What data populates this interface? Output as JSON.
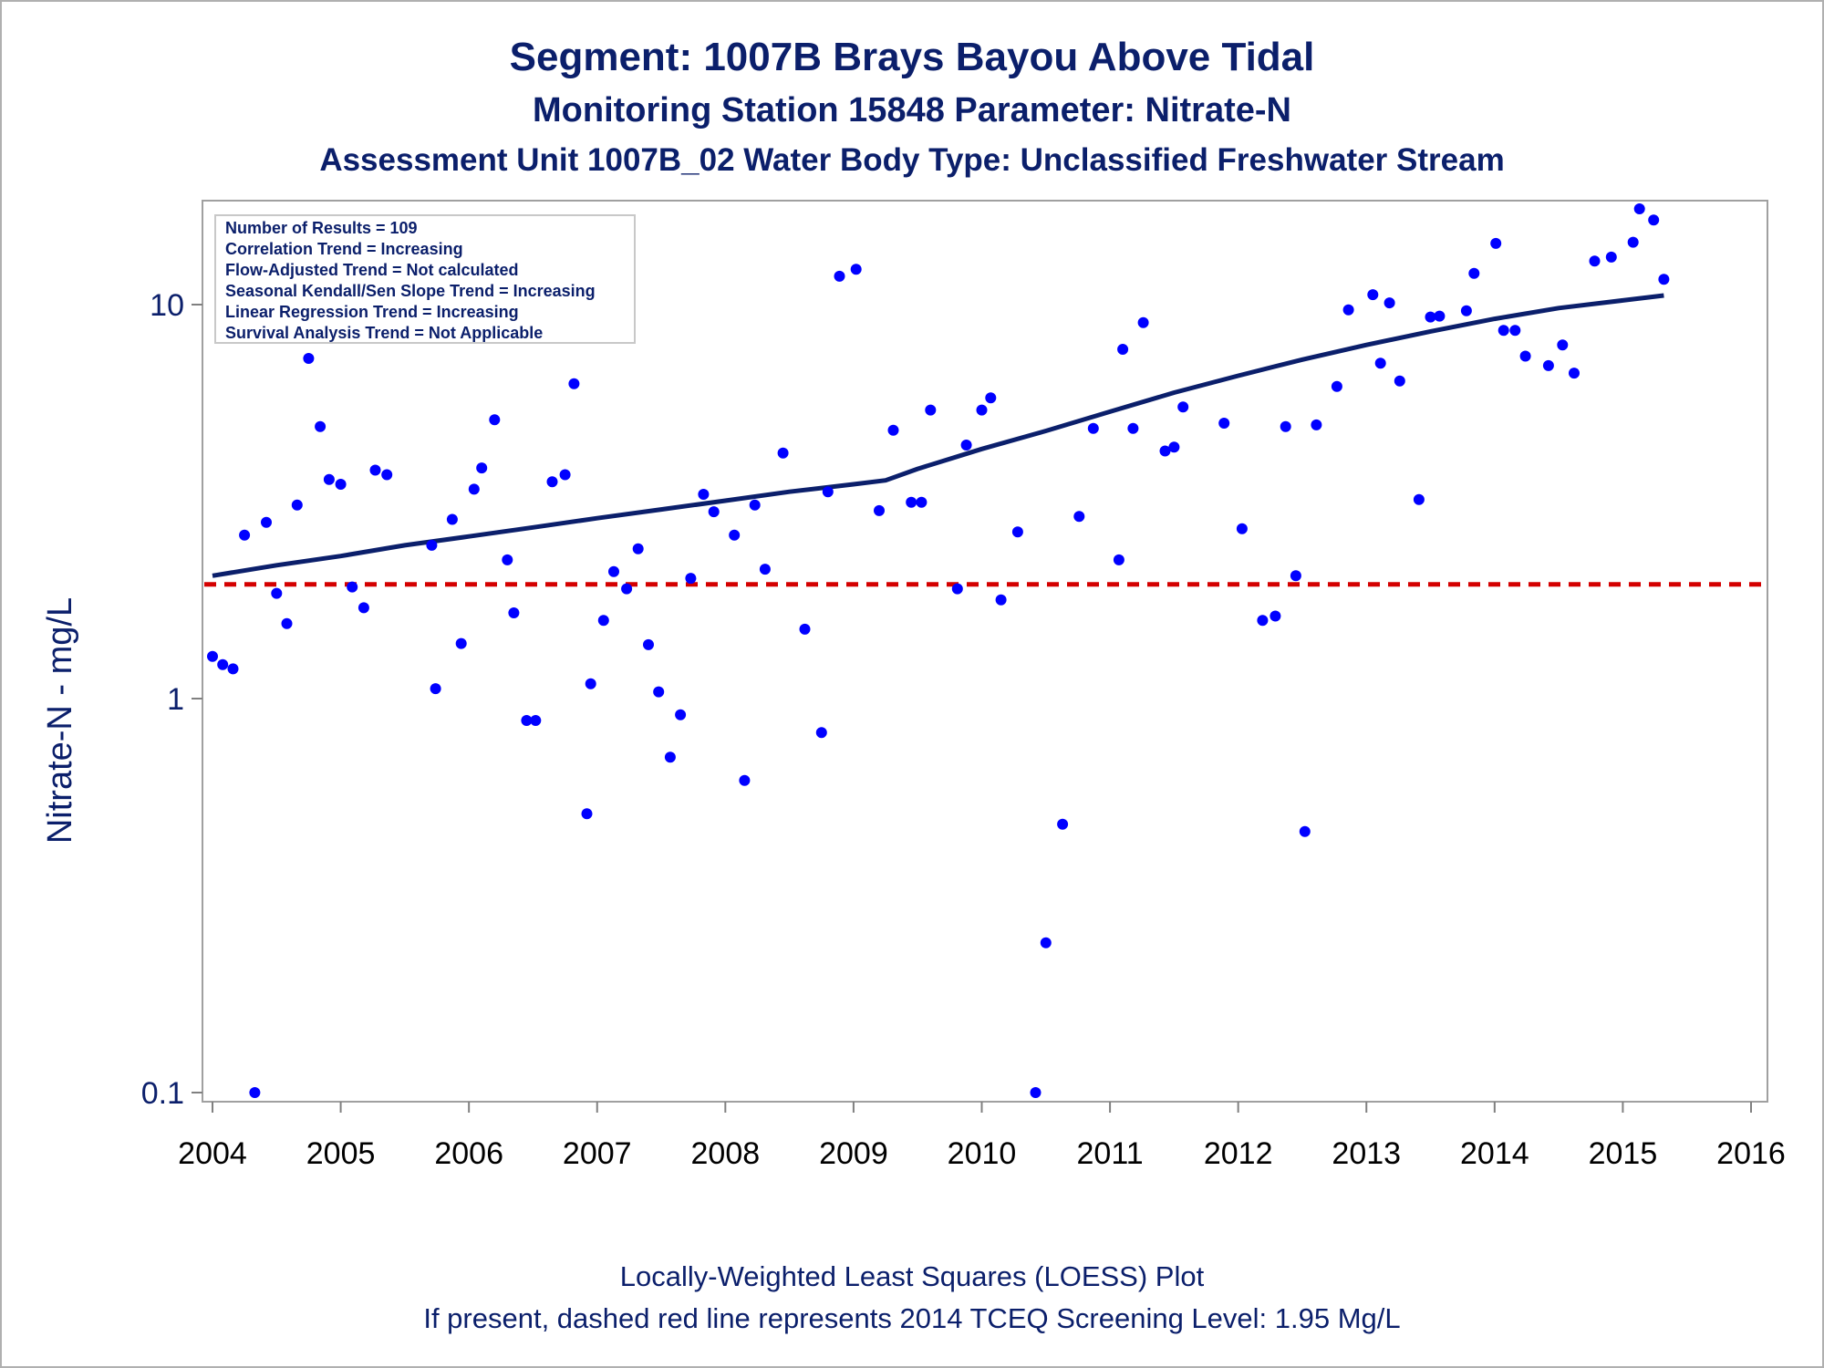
{
  "title": "Segment: 1007B  Brays Bayou Above Tidal",
  "subtitle1": "Monitoring Station 15848 Parameter: Nitrate-N",
  "subtitle2": "Assessment Unit 1007B_02   Water Body Type: Unclassified Freshwater Stream",
  "footnote1": "Locally-Weighted Least Squares (LOESS) Plot",
  "footnote2": "If present, dashed red line represents 2014 TCEQ Screening Level: 1.95 Mg/L",
  "annotations": [
    "Number of Results = 109",
    "Correlation Trend = Increasing",
    "Flow-Adjusted Trend = Not calculated",
    "Seasonal Kendall/Sen Slope Trend = Increasing",
    "Linear Regression Trend = Increasing",
    "Survival Analysis Trend = Not Applicable"
  ],
  "colors": {
    "points": "#0000ff",
    "loess": "#0b1f6b",
    "screening": "#d40000",
    "text": "#0b1f6b"
  },
  "chart_data": {
    "type": "scatter",
    "ylabel": "Nitrate-N - mg/L",
    "xlabel": "",
    "yscale": "log",
    "xlim": [
      2004,
      2016
    ],
    "ylim": [
      0.1,
      18
    ],
    "x_ticks": [
      "2004",
      "2005",
      "2006",
      "2007",
      "2008",
      "2009",
      "2010",
      "2011",
      "2012",
      "2013",
      "2014",
      "2015",
      "2016"
    ],
    "y_ticks": [
      "0.1",
      "1",
      "10"
    ],
    "screening_level": 1.95,
    "series": [
      {
        "points": [
          [
            2004.0,
            1.28
          ],
          [
            2004.08,
            1.22
          ],
          [
            2004.16,
            1.19
          ],
          [
            2004.25,
            2.6
          ],
          [
            2004.33,
            0.1
          ],
          [
            2004.42,
            2.8
          ],
          [
            2004.5,
            1.85
          ],
          [
            2004.58,
            1.55
          ],
          [
            2004.66,
            3.1
          ],
          [
            2004.75,
            7.3
          ],
          [
            2004.84,
            4.9
          ],
          [
            2004.91,
            3.6
          ],
          [
            2005.0,
            3.5
          ],
          [
            2005.09,
            1.92
          ],
          [
            2005.18,
            1.7
          ],
          [
            2005.27,
            3.8
          ],
          [
            2005.36,
            3.7
          ],
          [
            2005.71,
            2.45
          ],
          [
            2005.74,
            1.06
          ],
          [
            2005.87,
            2.85
          ],
          [
            2005.94,
            1.38
          ],
          [
            2006.04,
            3.4
          ],
          [
            2006.1,
            3.85
          ],
          [
            2006.2,
            5.1
          ],
          [
            2006.3,
            2.25
          ],
          [
            2006.35,
            1.65
          ],
          [
            2006.45,
            0.88
          ],
          [
            2006.52,
            0.88
          ],
          [
            2006.65,
            3.55
          ],
          [
            2006.75,
            3.7
          ],
          [
            2006.82,
            6.3
          ],
          [
            2006.92,
            0.51
          ],
          [
            2006.95,
            1.09
          ],
          [
            2007.05,
            1.58
          ],
          [
            2007.13,
            2.1
          ],
          [
            2007.23,
            1.9
          ],
          [
            2007.32,
            2.4
          ],
          [
            2007.4,
            1.37
          ],
          [
            2007.48,
            1.04
          ],
          [
            2007.57,
            0.71
          ],
          [
            2007.65,
            0.91
          ],
          [
            2007.73,
            2.02
          ],
          [
            2007.83,
            3.3
          ],
          [
            2007.91,
            2.98
          ],
          [
            2008.07,
            2.6
          ],
          [
            2008.15,
            0.62
          ],
          [
            2008.23,
            3.1
          ],
          [
            2008.31,
            2.13
          ],
          [
            2008.45,
            4.2
          ],
          [
            2008.62,
            1.5
          ],
          [
            2008.75,
            0.82
          ],
          [
            2008.8,
            3.35
          ],
          [
            2008.89,
            11.8
          ],
          [
            2009.02,
            12.3
          ],
          [
            2009.2,
            3.0
          ],
          [
            2009.31,
            4.8
          ],
          [
            2009.45,
            3.15
          ],
          [
            2009.53,
            3.15
          ],
          [
            2009.6,
            5.4
          ],
          [
            2009.81,
            1.9
          ],
          [
            2009.88,
            4.4
          ],
          [
            2010.0,
            5.4
          ],
          [
            2010.07,
            5.8
          ],
          [
            2010.15,
            1.78
          ],
          [
            2010.28,
            2.65
          ],
          [
            2010.42,
            0.1
          ],
          [
            2010.5,
            0.24
          ],
          [
            2010.63,
            0.48
          ],
          [
            2010.76,
            2.9
          ],
          [
            2010.87,
            4.85
          ],
          [
            2011.07,
            2.25
          ],
          [
            2011.1,
            7.7
          ],
          [
            2011.18,
            4.85
          ],
          [
            2011.26,
            9.0
          ],
          [
            2011.43,
            4.25
          ],
          [
            2011.5,
            4.35
          ],
          [
            2011.57,
            5.5
          ],
          [
            2011.89,
            5.0
          ],
          [
            2012.03,
            2.7
          ],
          [
            2012.19,
            1.58
          ],
          [
            2012.29,
            1.62
          ],
          [
            2012.37,
            4.9
          ],
          [
            2012.45,
            2.05
          ],
          [
            2012.52,
            0.46
          ],
          [
            2012.61,
            4.95
          ],
          [
            2012.77,
            6.2
          ],
          [
            2012.86,
            9.7
          ],
          [
            2013.05,
            10.6
          ],
          [
            2013.11,
            7.1
          ],
          [
            2013.18,
            10.1
          ],
          [
            2013.26,
            6.4
          ],
          [
            2013.41,
            3.2
          ],
          [
            2013.5,
            9.3
          ],
          [
            2013.57,
            9.35
          ],
          [
            2013.78,
            9.65
          ],
          [
            2013.84,
            12.0
          ],
          [
            2014.01,
            14.3
          ],
          [
            2014.07,
            8.6
          ],
          [
            2014.16,
            8.6
          ],
          [
            2014.24,
            7.4
          ],
          [
            2014.42,
            7.0
          ],
          [
            2014.53,
            7.9
          ],
          [
            2014.62,
            6.7
          ],
          [
            2014.78,
            12.9
          ],
          [
            2014.91,
            13.2
          ],
          [
            2015.08,
            14.4
          ],
          [
            2015.13,
            17.5
          ],
          [
            2015.24,
            16.4
          ],
          [
            2015.32,
            11.6
          ]
        ]
      }
    ],
    "loess_curve": [
      [
        2004.0,
        2.05
      ],
      [
        2004.5,
        2.18
      ],
      [
        2005.0,
        2.3
      ],
      [
        2005.5,
        2.45
      ],
      [
        2006.0,
        2.58
      ],
      [
        2006.5,
        2.72
      ],
      [
        2007.0,
        2.87
      ],
      [
        2007.5,
        3.02
      ],
      [
        2008.0,
        3.18
      ],
      [
        2008.5,
        3.35
      ],
      [
        2009.0,
        3.5
      ],
      [
        2009.25,
        3.58
      ],
      [
        2009.5,
        3.83
      ],
      [
        2010.0,
        4.3
      ],
      [
        2010.5,
        4.78
      ],
      [
        2011.0,
        5.35
      ],
      [
        2011.5,
        5.98
      ],
      [
        2012.0,
        6.6
      ],
      [
        2012.5,
        7.25
      ],
      [
        2013.0,
        7.9
      ],
      [
        2013.5,
        8.55
      ],
      [
        2014.0,
        9.2
      ],
      [
        2014.5,
        9.8
      ],
      [
        2015.0,
        10.25
      ],
      [
        2015.32,
        10.55
      ]
    ]
  }
}
